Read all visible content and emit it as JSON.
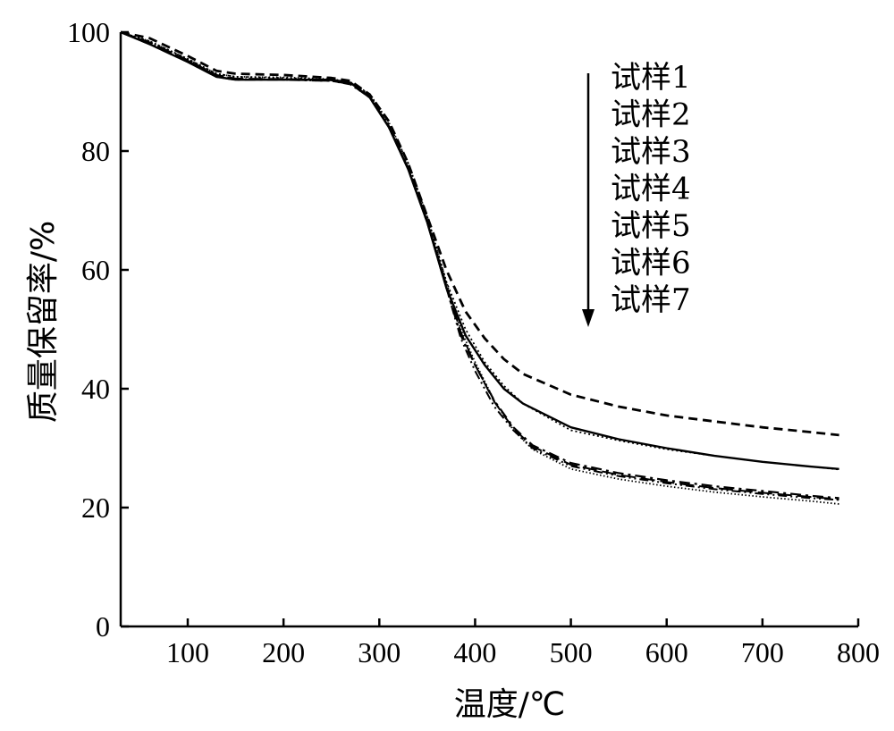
{
  "chart_data": {
    "type": "line",
    "xlabel": "温度/℃",
    "ylabel": "质量保留率/%",
    "xlim": [
      30,
      800
    ],
    "ylim": [
      0,
      100
    ],
    "xticks": [
      100,
      200,
      300,
      400,
      500,
      600,
      700,
      800
    ],
    "yticks": [
      0,
      20,
      40,
      60,
      80,
      100
    ],
    "grid": false,
    "legend_position": "top-right",
    "legend_arrow": "down",
    "series": [
      {
        "name": "试样1",
        "dash": "solid",
        "points": [
          [
            30,
            100
          ],
          [
            60,
            98
          ],
          [
            100,
            95
          ],
          [
            130,
            92.5
          ],
          [
            150,
            92
          ],
          [
            200,
            92
          ],
          [
            250,
            92
          ],
          [
            270,
            91.5
          ],
          [
            290,
            89
          ],
          [
            310,
            84
          ],
          [
            330,
            77
          ],
          [
            350,
            68
          ],
          [
            370,
            57
          ],
          [
            390,
            49
          ],
          [
            410,
            44
          ],
          [
            430,
            40
          ],
          [
            450,
            37.5
          ],
          [
            500,
            33.5
          ],
          [
            550,
            31.5
          ],
          [
            600,
            30
          ],
          [
            650,
            28.7
          ],
          [
            700,
            27.7
          ],
          [
            750,
            26.9
          ],
          [
            780,
            26.5
          ]
        ]
      },
      {
        "name": "试样2",
        "dash": "dashed",
        "points": [
          [
            30,
            100
          ],
          [
            60,
            99
          ],
          [
            100,
            96
          ],
          [
            130,
            93.5
          ],
          [
            150,
            93
          ],
          [
            200,
            92.8
          ],
          [
            250,
            92.3
          ],
          [
            270,
            91.8
          ],
          [
            290,
            89.5
          ],
          [
            310,
            85
          ],
          [
            330,
            78
          ],
          [
            350,
            69
          ],
          [
            370,
            60
          ],
          [
            390,
            53
          ],
          [
            410,
            48.5
          ],
          [
            430,
            45
          ],
          [
            450,
            42.5
          ],
          [
            500,
            39
          ],
          [
            550,
            37
          ],
          [
            600,
            35.5
          ],
          [
            650,
            34.5
          ],
          [
            700,
            33.5
          ],
          [
            750,
            32.7
          ],
          [
            780,
            32.2
          ]
        ]
      },
      {
        "name": "试样3",
        "dash": "dotted",
        "points": [
          [
            30,
            100
          ],
          [
            60,
            98.5
          ],
          [
            100,
            95.5
          ],
          [
            130,
            93
          ],
          [
            150,
            92.5
          ],
          [
            200,
            92.3
          ],
          [
            250,
            92
          ],
          [
            270,
            91.5
          ],
          [
            290,
            89.5
          ],
          [
            310,
            84.5
          ],
          [
            330,
            78
          ],
          [
            350,
            69
          ],
          [
            370,
            58
          ],
          [
            390,
            50
          ],
          [
            410,
            44.5
          ],
          [
            430,
            40.5
          ],
          [
            450,
            37.5
          ],
          [
            500,
            33
          ],
          [
            550,
            31.3
          ],
          [
            600,
            29.8
          ],
          [
            650,
            28.7
          ],
          [
            700,
            27.7
          ],
          [
            750,
            26.9
          ],
          [
            780,
            26.4
          ]
        ]
      },
      {
        "name": "试样4",
        "dash": "dashdot",
        "points": [
          [
            30,
            100
          ],
          [
            60,
            98
          ],
          [
            100,
            95
          ],
          [
            130,
            92.5
          ],
          [
            150,
            92
          ],
          [
            200,
            92
          ],
          [
            250,
            91.8
          ],
          [
            270,
            91.3
          ],
          [
            290,
            89
          ],
          [
            310,
            84
          ],
          [
            330,
            77
          ],
          [
            350,
            68
          ],
          [
            370,
            57
          ],
          [
            385,
            49
          ],
          [
            400,
            44
          ],
          [
            420,
            38
          ],
          [
            440,
            33.5
          ],
          [
            460,
            30.5
          ],
          [
            500,
            27.5
          ],
          [
            550,
            25.8
          ],
          [
            600,
            24.6
          ],
          [
            650,
            23.6
          ],
          [
            700,
            22.8
          ],
          [
            750,
            22
          ],
          [
            780,
            21.6
          ]
        ]
      },
      {
        "name": "试样5",
        "dash": "dashdotdot",
        "points": [
          [
            30,
            100
          ],
          [
            60,
            98.2
          ],
          [
            100,
            95.2
          ],
          [
            130,
            92.7
          ],
          [
            150,
            92.1
          ],
          [
            200,
            92
          ],
          [
            250,
            91.8
          ],
          [
            270,
            91.2
          ],
          [
            290,
            89
          ],
          [
            310,
            84
          ],
          [
            330,
            77
          ],
          [
            350,
            68
          ],
          [
            370,
            57
          ],
          [
            385,
            48.5
          ],
          [
            400,
            43
          ],
          [
            420,
            37
          ],
          [
            440,
            33
          ],
          [
            460,
            30
          ],
          [
            500,
            27
          ],
          [
            550,
            25.3
          ],
          [
            600,
            24.1
          ],
          [
            650,
            23.1
          ],
          [
            700,
            22.3
          ],
          [
            750,
            21.6
          ],
          [
            780,
            21.3
          ]
        ]
      },
      {
        "name": "试样6",
        "dash": "densedot",
        "points": [
          [
            30,
            100
          ],
          [
            60,
            98.5
          ],
          [
            100,
            95.5
          ],
          [
            130,
            93
          ],
          [
            150,
            92.5
          ],
          [
            200,
            92.4
          ],
          [
            250,
            92.1
          ],
          [
            270,
            91.6
          ],
          [
            290,
            89.6
          ],
          [
            310,
            84.8
          ],
          [
            330,
            78
          ],
          [
            350,
            69
          ],
          [
            370,
            58
          ],
          [
            385,
            50
          ],
          [
            400,
            44.5
          ],
          [
            420,
            38
          ],
          [
            440,
            33
          ],
          [
            460,
            29.8
          ],
          [
            500,
            26.5
          ],
          [
            550,
            24.8
          ],
          [
            600,
            23.6
          ],
          [
            650,
            22.6
          ],
          [
            700,
            21.8
          ],
          [
            750,
            21.1
          ],
          [
            780,
            20.6
          ]
        ]
      },
      {
        "name": "试样7",
        "dash": "longdash",
        "points": [
          [
            30,
            100
          ],
          [
            60,
            98.3
          ],
          [
            100,
            95.3
          ],
          [
            130,
            92.8
          ],
          [
            150,
            92.2
          ],
          [
            200,
            92.1
          ],
          [
            250,
            91.9
          ],
          [
            270,
            91.4
          ],
          [
            290,
            89.2
          ],
          [
            310,
            84.2
          ],
          [
            330,
            77.2
          ],
          [
            350,
            68.2
          ],
          [
            370,
            57.5
          ],
          [
            385,
            49.5
          ],
          [
            400,
            44
          ],
          [
            420,
            37.8
          ],
          [
            440,
            33.3
          ],
          [
            460,
            30.3
          ],
          [
            500,
            27.2
          ],
          [
            550,
            25.5
          ],
          [
            600,
            24.3
          ],
          [
            650,
            23.3
          ],
          [
            700,
            22.5
          ],
          [
            750,
            21.8
          ],
          [
            780,
            21.4
          ]
        ]
      }
    ]
  }
}
